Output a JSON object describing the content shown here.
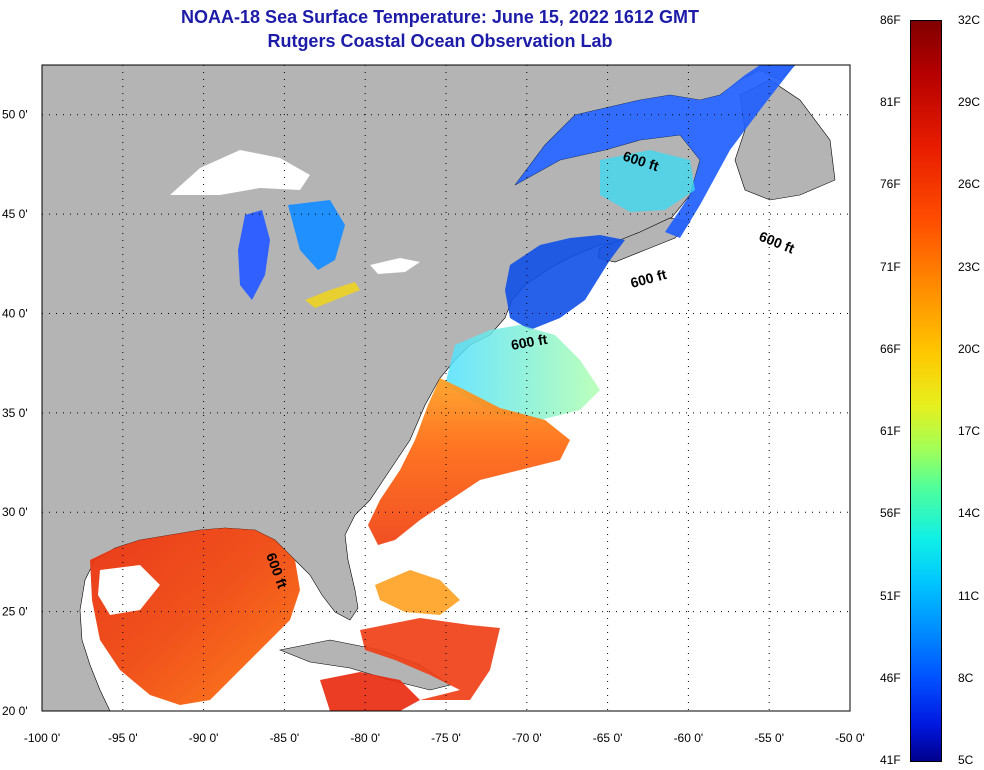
{
  "title": {
    "line1": "NOAA-18 Sea Surface Temperature:  June 15, 2022 1612 GMT",
    "line2": "Rutgers Coastal Ocean Observation Lab"
  },
  "map": {
    "lat_labels": [
      "50 0'",
      "45 0'",
      "40 0'",
      "35 0'",
      "30 0'",
      "25 0'",
      "20 0'"
    ],
    "lat_values": [
      50,
      45,
      40,
      35,
      30,
      25,
      20
    ],
    "lon_labels": [
      "-100 0'",
      "-95 0'",
      "-90 0'",
      "-85 0'",
      "-80 0'",
      "-75 0'",
      "-70 0'",
      "-65 0'",
      "-60 0'",
      "-55 0'",
      "-50 0'"
    ],
    "lon_values": [
      -100,
      -95,
      -90,
      -85,
      -80,
      -75,
      -70,
      -65,
      -60,
      -55,
      -50
    ],
    "lat_range": [
      20,
      52.5
    ],
    "lon_range": [
      -100,
      -50
    ],
    "isobath_labels": [
      "600 ft",
      "600 ft",
      "600 ft",
      "600 ft",
      "600 ft"
    ],
    "colors": {
      "land": "#b4b4b4",
      "ocean_no_data": "#ffffff",
      "grid": "#000000"
    }
  },
  "colorbar": {
    "celsius_labels": [
      "32C",
      "29C",
      "26C",
      "23C",
      "20C",
      "17C",
      "14C",
      "11C",
      "8C",
      "5C"
    ],
    "fahrenheit_labels": [
      "86F",
      "81F",
      "76F",
      "71F",
      "66F",
      "61F",
      "56F",
      "51F",
      "46F",
      "41F"
    ],
    "celsius_range": [
      5,
      32
    ],
    "fahrenheit_range": [
      41,
      86
    ]
  }
}
